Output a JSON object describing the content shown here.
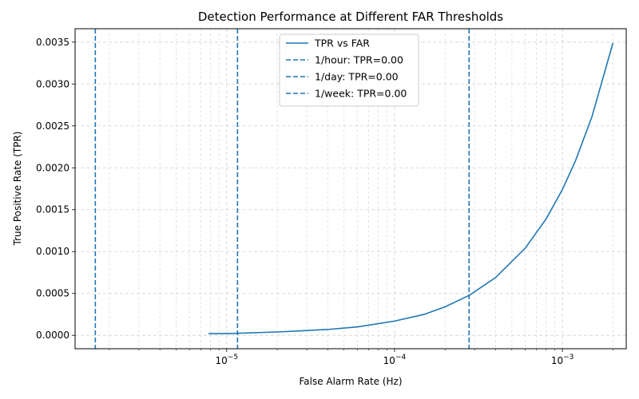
{
  "chart_data": {
    "type": "line",
    "title": "Detection Performance at Different FAR Thresholds",
    "xlabel": "False Alarm Rate (Hz)",
    "ylabel": "True Positive Rate (TPR)",
    "xscale": "log",
    "xlim": [
      1.25e-06,
      0.0024
    ],
    "ylim": [
      -0.00016,
      0.00366
    ],
    "grid": "on (major and minor, dashed)",
    "legend_position": "top-center",
    "x_ticks": [
      {
        "value": 1e-05,
        "base": "10",
        "exp": "−5"
      },
      {
        "value": 0.0001,
        "base": "10",
        "exp": "−4"
      },
      {
        "value": 0.001,
        "base": "10",
        "exp": "−3"
      }
    ],
    "y_ticks": [
      "0.0000",
      "0.0005",
      "0.0010",
      "0.0015",
      "0.0020",
      "0.0025",
      "0.0030",
      "0.0035"
    ],
    "series": [
      {
        "name": "TPR vs FAR",
        "style": "solid",
        "color": "#1f77b4",
        "x": [
          7.8e-06,
          1e-05,
          2e-05,
          4e-05,
          6e-05,
          0.0001,
          0.00015,
          0.0002,
          0.00028,
          0.0004,
          0.0006,
          0.0008,
          0.001,
          0.0012,
          0.0015,
          0.002
        ],
        "y": [
          2e-05,
          2e-05,
          4e-05,
          7e-05,
          0.0001,
          0.00017,
          0.00025,
          0.00034,
          0.00048,
          0.00069,
          0.00104,
          0.00139,
          0.00174,
          0.00209,
          0.00261,
          0.00349
        ]
      }
    ],
    "threshold_lines": [
      {
        "name": "1/hour: TPR=0.00",
        "x": 0.000278,
        "style": "dashed",
        "color": "#1f77b4"
      },
      {
        "name": "1/day: TPR=0.00",
        "x": 1.16e-05,
        "style": "dashed",
        "color": "#1f77b4"
      },
      {
        "name": "1/week: TPR=0.00",
        "x": 1.65e-06,
        "style": "dashed",
        "color": "#1f77b4"
      }
    ]
  }
}
